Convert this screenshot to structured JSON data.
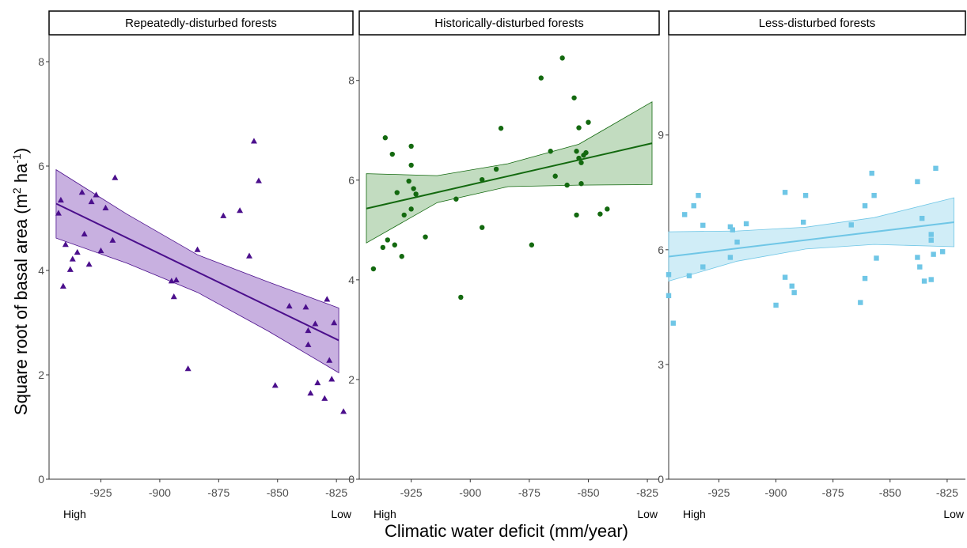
{
  "figure": {
    "ylabel_main": "Square root of basal area (m",
    "ylabel_sup1": "2",
    "ylabel_mid": " ha",
    "ylabel_sup2": "-1",
    "ylabel_end": ")",
    "xlabel": "Climatic water deficit (mm/year)"
  },
  "chart_data": [
    {
      "type": "scatter",
      "title": "Repeatedly-disturbed forests",
      "marker": "triangle",
      "color": "#4b0f8c",
      "band_color": "#9b6fc7",
      "xlim": [
        -947,
        -818
      ],
      "ylim": [
        0,
        8.5
      ],
      "xticks": [
        -925,
        -900,
        -875,
        -850,
        -825
      ],
      "yticks": [
        0,
        2,
        4,
        6,
        8
      ],
      "xtick_labels": [
        "-925",
        "-900",
        "-875",
        "-850",
        "-825"
      ],
      "ytick_labels": [
        "0",
        "2",
        "4",
        "6",
        "8"
      ],
      "x_extremes": {
        "low_end": "High",
        "high_end": "Low"
      },
      "points": [
        [
          -943,
          5.1
        ],
        [
          -942,
          5.35
        ],
        [
          -941,
          3.7
        ],
        [
          -940,
          4.5
        ],
        [
          -938,
          4.02
        ],
        [
          -937,
          4.22
        ],
        [
          -935,
          4.35
        ],
        [
          -933,
          5.5
        ],
        [
          -932,
          4.7
        ],
        [
          -930,
          4.12
        ],
        [
          -929,
          5.32
        ],
        [
          -927,
          5.45
        ],
        [
          -925,
          4.38
        ],
        [
          -923,
          5.2
        ],
        [
          -920,
          4.58
        ],
        [
          -919,
          5.78
        ],
        [
          -895,
          3.8
        ],
        [
          -894,
          3.5
        ],
        [
          -893,
          3.82
        ],
        [
          -888,
          2.12
        ],
        [
          -884,
          4.4
        ],
        [
          -873,
          5.05
        ],
        [
          -866,
          5.15
        ],
        [
          -862,
          4.28
        ],
        [
          -860,
          6.48
        ],
        [
          -858,
          5.72
        ],
        [
          -851,
          1.8
        ],
        [
          -845,
          3.32
        ],
        [
          -838,
          3.3
        ],
        [
          -837,
          2.58
        ],
        [
          -837,
          2.85
        ],
        [
          -836,
          1.65
        ],
        [
          -834,
          2.98
        ],
        [
          -833,
          1.85
        ],
        [
          -830,
          1.55
        ],
        [
          -829,
          3.45
        ],
        [
          -828,
          2.28
        ],
        [
          -827,
          1.92
        ],
        [
          -826,
          3.0
        ],
        [
          -822,
          1.3
        ]
      ],
      "fit": {
        "x": [
          -944,
          -824
        ],
        "y": [
          5.28,
          2.66
        ]
      },
      "ci_lower": {
        "x": [
          -944,
          -914,
          -884,
          -854,
          -824
        ],
        "y": [
          4.62,
          4.14,
          3.58,
          2.84,
          2.04
        ]
      },
      "ci_upper": {
        "x": [
          -944,
          -914,
          -884,
          -854,
          -824
        ],
        "y": [
          5.93,
          5.08,
          4.3,
          3.78,
          3.28
        ]
      }
    },
    {
      "type": "scatter",
      "title": "Historically-disturbed forests",
      "marker": "circle",
      "color": "#13690f",
      "band_color": "#8fbf8c",
      "xlim": [
        -947,
        -820
      ],
      "ylim": [
        0,
        8.9
      ],
      "xticks": [
        -925,
        -900,
        -875,
        -850,
        -825
      ],
      "yticks": [
        0,
        2,
        4,
        6,
        8
      ],
      "xtick_labels": [
        "-925",
        "-900",
        "-875",
        "-850",
        "-825"
      ],
      "ytick_labels": [
        "0",
        "2",
        "4",
        "6",
        "8"
      ],
      "x_extremes": {
        "low_end": "High",
        "high_end": "Low"
      },
      "points": [
        [
          -941,
          4.22
        ],
        [
          -937,
          4.65
        ],
        [
          -936,
          6.85
        ],
        [
          -935,
          4.8
        ],
        [
          -933,
          6.52
        ],
        [
          -932,
          4.7
        ],
        [
          -931,
          5.75
        ],
        [
          -929,
          4.47
        ],
        [
          -928,
          5.3
        ],
        [
          -926,
          5.98
        ],
        [
          -925,
          5.42
        ],
        [
          -925,
          6.68
        ],
        [
          -925,
          6.3
        ],
        [
          -924,
          5.83
        ],
        [
          -923,
          5.72
        ],
        [
          -919,
          4.86
        ],
        [
          -906,
          5.62
        ],
        [
          -904,
          3.65
        ],
        [
          -895,
          5.05
        ],
        [
          -895,
          6.01
        ],
        [
          -889,
          6.22
        ],
        [
          -887,
          7.04
        ],
        [
          -874,
          4.7
        ],
        [
          -870,
          8.05
        ],
        [
          -866,
          6.58
        ],
        [
          -864,
          6.08
        ],
        [
          -861,
          8.45
        ],
        [
          -859,
          5.9
        ],
        [
          -856,
          7.65
        ],
        [
          -855,
          5.3
        ],
        [
          -855,
          6.58
        ],
        [
          -854,
          7.05
        ],
        [
          -854,
          6.44
        ],
        [
          -853,
          5.93
        ],
        [
          -853,
          6.35
        ],
        [
          -852,
          6.5
        ],
        [
          -851,
          6.55
        ],
        [
          -850,
          7.16
        ],
        [
          -845,
          5.32
        ],
        [
          -842,
          5.42
        ]
      ],
      "fit": {
        "x": [
          -944,
          -823
        ],
        "y": [
          5.43,
          6.74
        ]
      },
      "ci_lower": {
        "x": [
          -944,
          -914,
          -884,
          -854,
          -823
        ],
        "y": [
          4.74,
          5.55,
          5.87,
          5.9,
          5.91
        ]
      },
      "ci_upper": {
        "x": [
          -944,
          -914,
          -884,
          -854,
          -823
        ],
        "y": [
          6.13,
          6.09,
          6.33,
          6.72,
          7.57
        ]
      }
    },
    {
      "type": "scatter",
      "title": "Less-disturbed forests",
      "marker": "square",
      "color": "#6fc6e6",
      "band_color": "#a9def0",
      "xlim": [
        -947,
        -817
      ],
      "ylim": [
        0,
        11.6
      ],
      "xticks": [
        -925,
        -900,
        -875,
        -850,
        -825
      ],
      "yticks": [
        0,
        3,
        6,
        9
      ],
      "xtick_labels": [
        "-925",
        "-900",
        "-875",
        "-850",
        "-825"
      ],
      "ytick_labels": [
        "0",
        "3",
        "6",
        "9"
      ],
      "x_extremes": {
        "low_end": "High",
        "high_end": "Low"
      },
      "points": [
        [
          -947,
          5.35
        ],
        [
          -947,
          4.8
        ],
        [
          -945,
          4.08
        ],
        [
          -940,
          6.92
        ],
        [
          -938,
          5.32
        ],
        [
          -936,
          7.15
        ],
        [
          -934,
          7.42
        ],
        [
          -932,
          6.64
        ],
        [
          -932,
          5.55
        ],
        [
          -920,
          6.6
        ],
        [
          -920,
          5.8
        ],
        [
          -919,
          6.52
        ],
        [
          -917,
          6.2
        ],
        [
          -913,
          6.68
        ],
        [
          -900,
          4.55
        ],
        [
          -896,
          5.28
        ],
        [
          -896,
          7.5
        ],
        [
          -893,
          5.05
        ],
        [
          -892,
          4.88
        ],
        [
          -888,
          6.72
        ],
        [
          -887,
          7.42
        ],
        [
          -867,
          6.65
        ],
        [
          -863,
          4.62
        ],
        [
          -861,
          7.15
        ],
        [
          -861,
          5.25
        ],
        [
          -858,
          8.0
        ],
        [
          -857,
          7.42
        ],
        [
          -856,
          5.78
        ],
        [
          -838,
          7.78
        ],
        [
          -838,
          5.8
        ],
        [
          -837,
          5.55
        ],
        [
          -836,
          6.82
        ],
        [
          -835,
          5.18
        ],
        [
          -832,
          6.4
        ],
        [
          -832,
          6.25
        ],
        [
          -832,
          5.22
        ],
        [
          -831,
          5.88
        ],
        [
          -830,
          8.13
        ],
        [
          -827,
          5.95
        ]
      ],
      "fit": {
        "x": [
          -947,
          -822
        ],
        "y": [
          5.82,
          6.72
        ]
      },
      "ci_lower": {
        "x": [
          -947,
          -917,
          -887,
          -857,
          -822
        ],
        "y": [
          5.18,
          5.7,
          6.02,
          6.14,
          6.08
        ]
      },
      "ci_upper": {
        "x": [
          -947,
          -917,
          -887,
          -857,
          -822
        ],
        "y": [
          6.47,
          6.49,
          6.59,
          6.84,
          7.36
        ]
      }
    }
  ]
}
